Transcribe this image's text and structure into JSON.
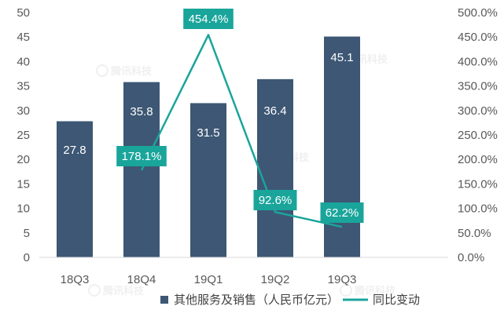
{
  "chart_data": {
    "type": "bar",
    "categories": [
      "18Q3",
      "18Q4",
      "19Q1",
      "19Q2",
      "19Q3"
    ],
    "series": [
      {
        "name": "其他服务及销售（人民币亿元）",
        "type": "bar",
        "axis": "left",
        "values": [
          27.8,
          35.8,
          31.5,
          36.4,
          45.1
        ],
        "value_labels": [
          "27.8",
          "35.8",
          "31.5",
          "36.4",
          "45.1"
        ],
        "color": "#3d5774"
      },
      {
        "name": "同比变动",
        "type": "line",
        "axis": "right",
        "values": [
          null,
          178.1,
          454.4,
          92.6,
          62.2
        ],
        "value_labels": [
          "",
          "178.1%",
          "454.4%",
          "92.6%",
          "62.2%"
        ],
        "color": "#1aa59b"
      }
    ],
    "y_left": {
      "ylim": [
        0,
        50
      ],
      "ticks": [
        "0",
        "5",
        "10",
        "15",
        "20",
        "25",
        "30",
        "35",
        "40",
        "45",
        "50"
      ]
    },
    "y_right": {
      "ylim": [
        0,
        500
      ],
      "ticks": [
        "0.0%",
        "50.0%",
        "100.0%",
        "150.0%",
        "200.0%",
        "250.0%",
        "300.0%",
        "350.0%",
        "400.0%",
        "450.0%",
        "500.0%"
      ]
    },
    "grid": false,
    "legend_position": "bottom",
    "watermark": "腾讯科技"
  }
}
